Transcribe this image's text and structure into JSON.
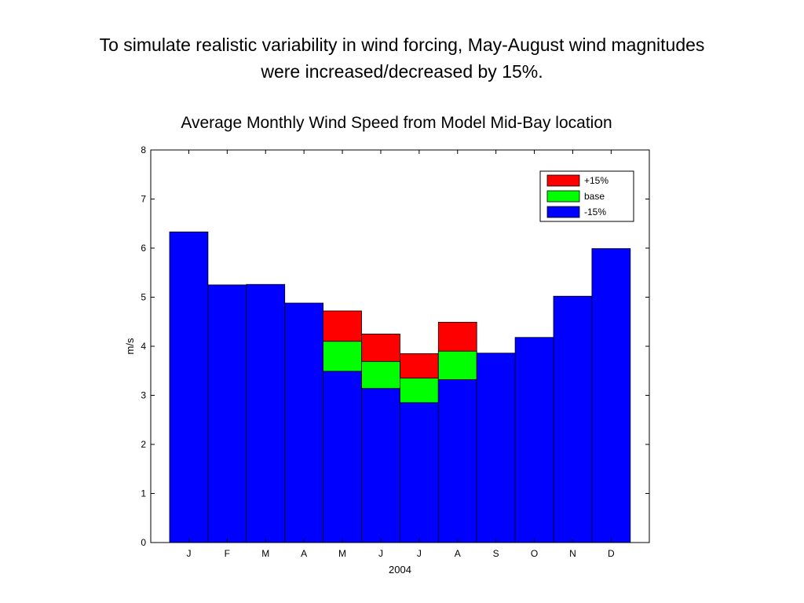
{
  "slide": {
    "title_line1": "To simulate realistic variability in wind forcing, May-August wind magnitudes",
    "title_line2": "were increased/decreased by 15%."
  },
  "chart_data": {
    "type": "bar",
    "title": "Average Monthly Wind Speed from Model Mid-Bay location",
    "xlabel": "2004",
    "ylabel": "m/s",
    "ylim": [
      0,
      8
    ],
    "yticks": [
      0,
      1,
      2,
      3,
      4,
      5,
      6,
      7,
      8
    ],
    "grid": false,
    "legend_position": "top-right",
    "categories": [
      "J",
      "F",
      "M",
      "A",
      "M",
      "J",
      "J",
      "A",
      "S",
      "O",
      "N",
      "D"
    ],
    "series": [
      {
        "name": "+15%",
        "color": "#ff0000",
        "values": [
          null,
          null,
          null,
          null,
          4.72,
          4.25,
          3.85,
          4.49,
          null,
          null,
          null,
          null
        ]
      },
      {
        "name": "base",
        "color": "#00ff00",
        "values": [
          null,
          null,
          null,
          null,
          4.1,
          3.69,
          3.35,
          3.9,
          null,
          null,
          null,
          null
        ]
      },
      {
        "name": "-15%",
        "color": "#0000ff",
        "values": [
          6.33,
          5.25,
          5.26,
          4.88,
          3.49,
          3.14,
          2.85,
          3.32,
          3.86,
          4.18,
          5.02,
          5.99
        ]
      }
    ]
  }
}
